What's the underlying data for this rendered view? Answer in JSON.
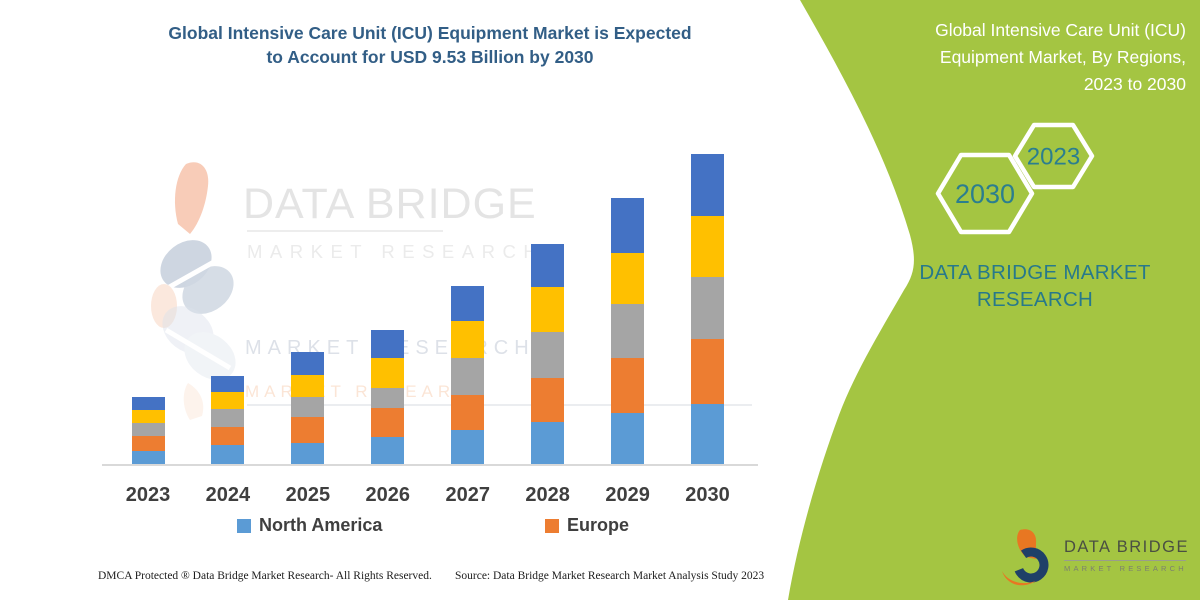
{
  "header": {
    "title_line1": "Global Intensive Care Unit (ICU) Equipment Market is Expected",
    "title_line2": "to Account for USD 9.53 Billion by 2030"
  },
  "side_panel": {
    "title_line1": "Global Intensive Care Unit (ICU)",
    "title_line2": "Equipment Market, By Regions,",
    "title_line3": "2023 to 2030",
    "hexagon_large_label": "2030",
    "hexagon_small_label": "2023",
    "brand_line1": "DATA BRIDGE MARKET",
    "brand_line2": "RESEARCH"
  },
  "watermark": {
    "brand": "DATA BRIDGE",
    "sub": "MARKET RESEARCH",
    "echo1": "MARKET RESEARCH",
    "echo2": "MARKET RESEARCH"
  },
  "footer": {
    "dmca": "DMCA Protected ® Data Bridge Market Research- All Rights Reserved.",
    "source": "Source: Data Bridge Market Research Market Analysis Study 2023"
  },
  "logo": {
    "name": "DATA BRIDGE",
    "tagline": "MARKET RESEARCH"
  },
  "colors": {
    "panel_green": "#a4c542",
    "teal": "#27798b",
    "title_blue": "#325e86",
    "axis_gray": "#d9d9d9",
    "label_gray": "#3f3f3f",
    "white": "#ffffff"
  },
  "chart_data": {
    "type": "bar",
    "stacked": true,
    "title": "Global Intensive Care Unit (ICU) Equipment Market, By Regions, 2023 to 2030",
    "unit": "USD billion (estimated from bar heights; 2030 total = 9.53 per headline)",
    "categories": [
      "2023",
      "2024",
      "2025",
      "2026",
      "2027",
      "2028",
      "2029",
      "2030"
    ],
    "series": [
      {
        "name": "North America",
        "color": "#5B9BD5",
        "values": [
          0.4,
          0.58,
          0.64,
          0.82,
          1.05,
          1.3,
          1.56,
          1.86
        ]
      },
      {
        "name": "Europe",
        "color": "#ED7D31",
        "values": [
          0.46,
          0.56,
          0.82,
          0.89,
          1.08,
          1.36,
          1.69,
          1.98
        ]
      },
      {
        "name": "unlabeled-gray",
        "color": "#A5A5A5",
        "values": [
          0.41,
          0.56,
          0.61,
          0.64,
          1.13,
          1.4,
          1.66,
          1.9
        ]
      },
      {
        "name": "unlabeled-gold",
        "color": "#FFC000",
        "values": [
          0.39,
          0.51,
          0.67,
          0.92,
          1.13,
          1.4,
          1.57,
          1.88
        ]
      },
      {
        "name": "unlabeled-dark-blue",
        "color": "#4472C4",
        "values": [
          0.4,
          0.49,
          0.72,
          0.85,
          1.08,
          1.31,
          1.69,
          1.91
        ]
      }
    ],
    "totals": [
      2.06,
      2.7,
      3.46,
      4.12,
      5.47,
      6.77,
      8.17,
      9.53
    ],
    "legend": [
      "North America",
      "Europe"
    ],
    "legend_position": "bottom",
    "y_axis_visible": false,
    "grid": false
  }
}
